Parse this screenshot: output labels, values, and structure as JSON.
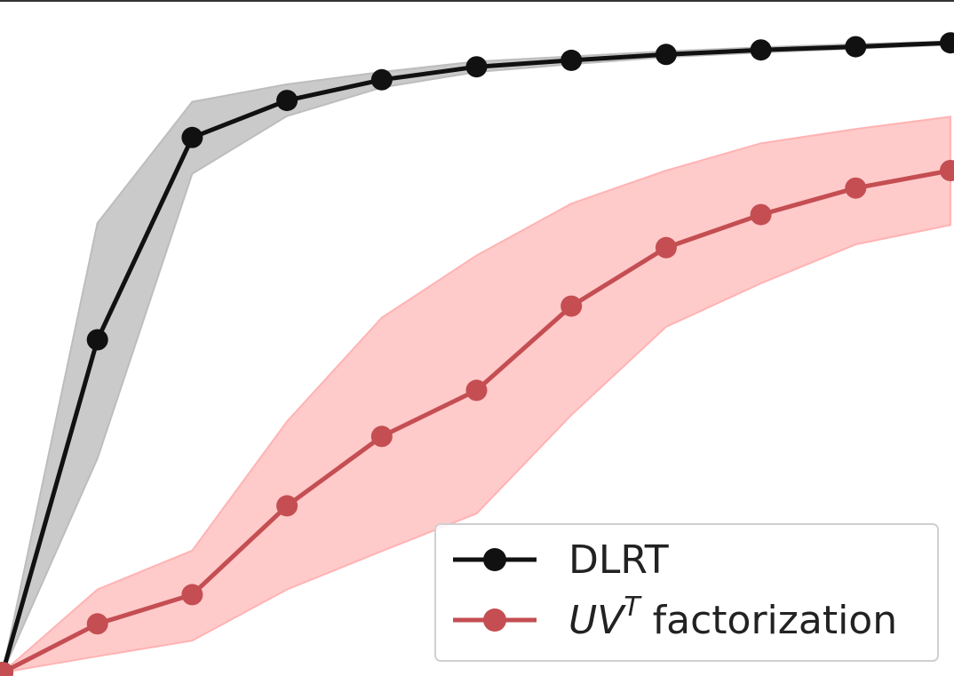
{
  "chart_data": {
    "type": "line",
    "title": "",
    "xlabel": "",
    "ylabel": "",
    "x": [
      0,
      1,
      2,
      3,
      4,
      5,
      6,
      7,
      8,
      9,
      10
    ],
    "xlim": [
      0,
      10
    ],
    "ylim": [
      0.0,
      1.0
    ],
    "grid": false,
    "legend_position": "bottom-right",
    "series": [
      {
        "name": "DLRT",
        "color": "#111111",
        "band_color": "#bdbdbd",
        "values": [
          0.0,
          0.513,
          0.825,
          0.882,
          0.914,
          0.934,
          0.944,
          0.953,
          0.96,
          0.965,
          0.971
        ],
        "lower": [
          0.0,
          0.33,
          0.769,
          0.858,
          0.902,
          0.926,
          0.938,
          0.949,
          0.956,
          0.962,
          0.968
        ],
        "upper": [
          0.0,
          0.693,
          0.88,
          0.907,
          0.926,
          0.942,
          0.95,
          0.958,
          0.964,
          0.969,
          0.973
        ]
      },
      {
        "name": "UV^T factorization",
        "name_parts": {
          "base": "UV",
          "superscript": "T",
          "suffix": " factorization"
        },
        "color": "#c44e52",
        "band_color": "#ffb3b3",
        "values": [
          0.0,
          0.075,
          0.12,
          0.257,
          0.364,
          0.435,
          0.565,
          0.655,
          0.706,
          0.747,
          0.774
        ],
        "lower": [
          0.0,
          0.025,
          0.049,
          0.128,
          0.187,
          0.245,
          0.397,
          0.533,
          0.6,
          0.66,
          0.69
        ],
        "upper": [
          0.0,
          0.128,
          0.188,
          0.387,
          0.547,
          0.643,
          0.723,
          0.774,
          0.816,
          0.838,
          0.857
        ]
      }
    ]
  }
}
